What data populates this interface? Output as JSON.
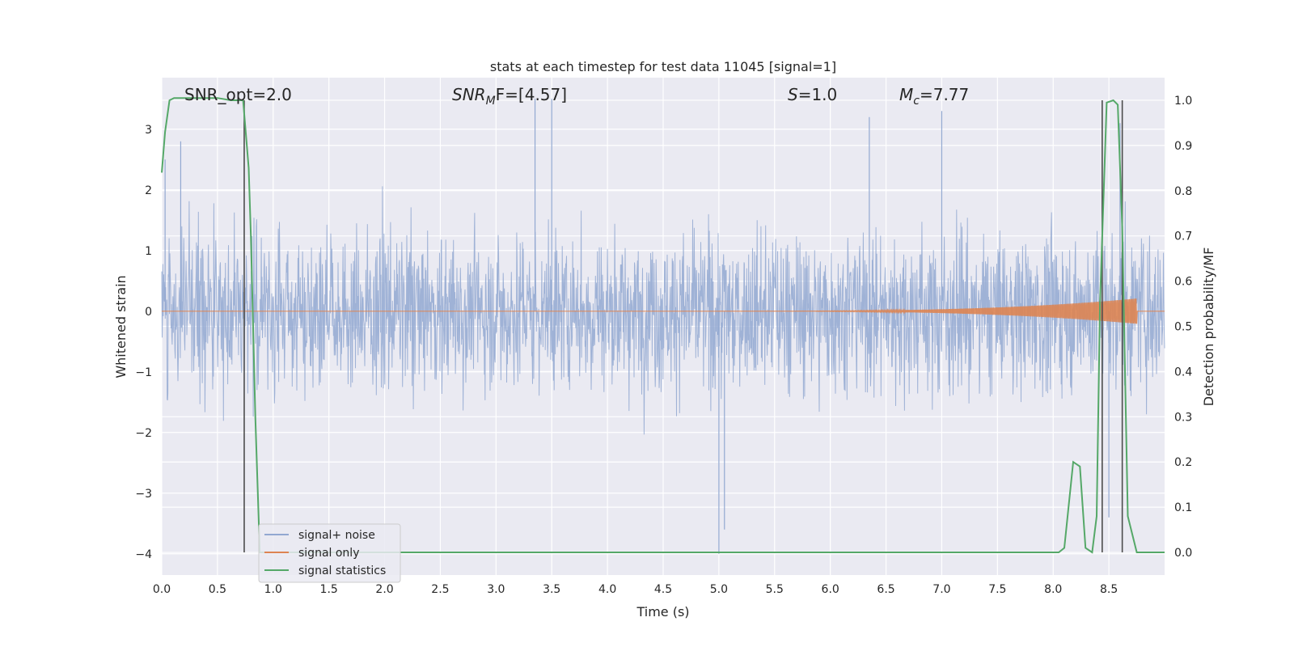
{
  "chart_data": {
    "type": "line",
    "title": "stats at each timestep for test data 11045 [signal=1]",
    "xlabel": "Time (s)",
    "ylabel_left": "Whitened strain",
    "ylabel_right": "Detection probability/MF",
    "xlim": [
      0.0,
      9.0
    ],
    "ylim_left": [
      -4.35,
      3.85
    ],
    "ylim_right": [
      -0.05,
      1.05
    ],
    "x_ticks": [
      0.0,
      0.5,
      1.0,
      1.5,
      2.0,
      2.5,
      3.0,
      3.5,
      4.0,
      4.5,
      5.0,
      5.5,
      6.0,
      6.5,
      7.0,
      7.5,
      8.0,
      8.5
    ],
    "x_tick_labels": [
      "0.0",
      "0.5",
      "1.0",
      "1.5",
      "2.0",
      "2.5",
      "3.0",
      "3.5",
      "4.0",
      "4.5",
      "5.0",
      "5.5",
      "6.0",
      "6.5",
      "7.0",
      "7.5",
      "8.0",
      "8.5"
    ],
    "y_left_ticks": [
      3,
      2,
      1,
      0,
      -1,
      -2,
      -3,
      -4
    ],
    "y_left_tick_labels": [
      "3",
      "2",
      "1",
      "0",
      "−1",
      "−2",
      "−3",
      "−4"
    ],
    "y_right_ticks": [
      1.0,
      0.9,
      0.8,
      0.7,
      0.6,
      0.5,
      0.4,
      0.3,
      0.2,
      0.1,
      0.0
    ],
    "y_right_tick_labels": [
      "1.0",
      "0.9",
      "0.8",
      "0.7",
      "0.6",
      "0.5",
      "0.4",
      "0.3",
      "0.2",
      "0.1",
      "0.0"
    ],
    "grid": true,
    "legend_position": "lower-left",
    "annotations": {
      "snr_opt": "SNR_opt=2.0",
      "snr_mf_prefix": "SNR",
      "snr_mf_sub": "M",
      "snr_mf_value": "F=[4.57]",
      "s_symbol": "S",
      "s_value": "=1.0",
      "mc_symbol": "M",
      "mc_sub": "c",
      "mc_value": "=7.77"
    },
    "series": [
      {
        "name": "signal+ noise",
        "color": "#92a8d1",
        "axis": "left",
        "description_points": {
          "noise_envelope_typical": [
            -1.7,
            2.2
          ],
          "peaks": [
            [
              0.03,
              2.5
            ],
            [
              0.17,
              2.8
            ],
            [
              3.35,
              3.5
            ],
            [
              3.5,
              3.5
            ],
            [
              5.0,
              -4.0
            ],
            [
              5.05,
              -3.6
            ],
            [
              6.35,
              3.2
            ],
            [
              7.0,
              3.3
            ],
            [
              8.6,
              3.1
            ],
            [
              8.5,
              -3.4
            ]
          ]
        }
      },
      {
        "name": "signal only",
        "color": "#dd8452",
        "axis": "left",
        "chirp": {
          "start_time": 5.0,
          "peak_time": 8.7,
          "peak_amplitude": 0.2
        }
      },
      {
        "name": "signal statistics",
        "color": "#55a868",
        "axis": "right",
        "x": [
          0.0,
          0.03,
          0.07,
          0.11,
          0.2,
          0.5,
          0.62,
          0.73,
          0.78,
          0.8,
          0.84,
          0.88,
          1.0,
          8.05,
          8.1,
          8.18,
          8.24,
          8.29,
          8.35,
          8.39,
          8.42,
          8.48,
          8.54,
          8.58,
          8.62,
          8.67,
          8.75,
          9.0
        ],
        "y": [
          0.84,
          0.93,
          1.0,
          1.005,
          1.005,
          1.005,
          1.0,
          1.0,
          0.85,
          0.7,
          0.3,
          0.0,
          0.0,
          0.0,
          0.01,
          0.2,
          0.19,
          0.01,
          0.0,
          0.08,
          0.55,
          0.995,
          1.0,
          0.99,
          0.72,
          0.08,
          0.0,
          0.0
        ]
      }
    ],
    "vertical_lines": {
      "color": "#4c4c4c",
      "x": [
        0.74,
        8.44,
        8.62
      ],
      "y_top_right_axis": 1.0,
      "y_bottom_right_axis": 0.0
    }
  }
}
